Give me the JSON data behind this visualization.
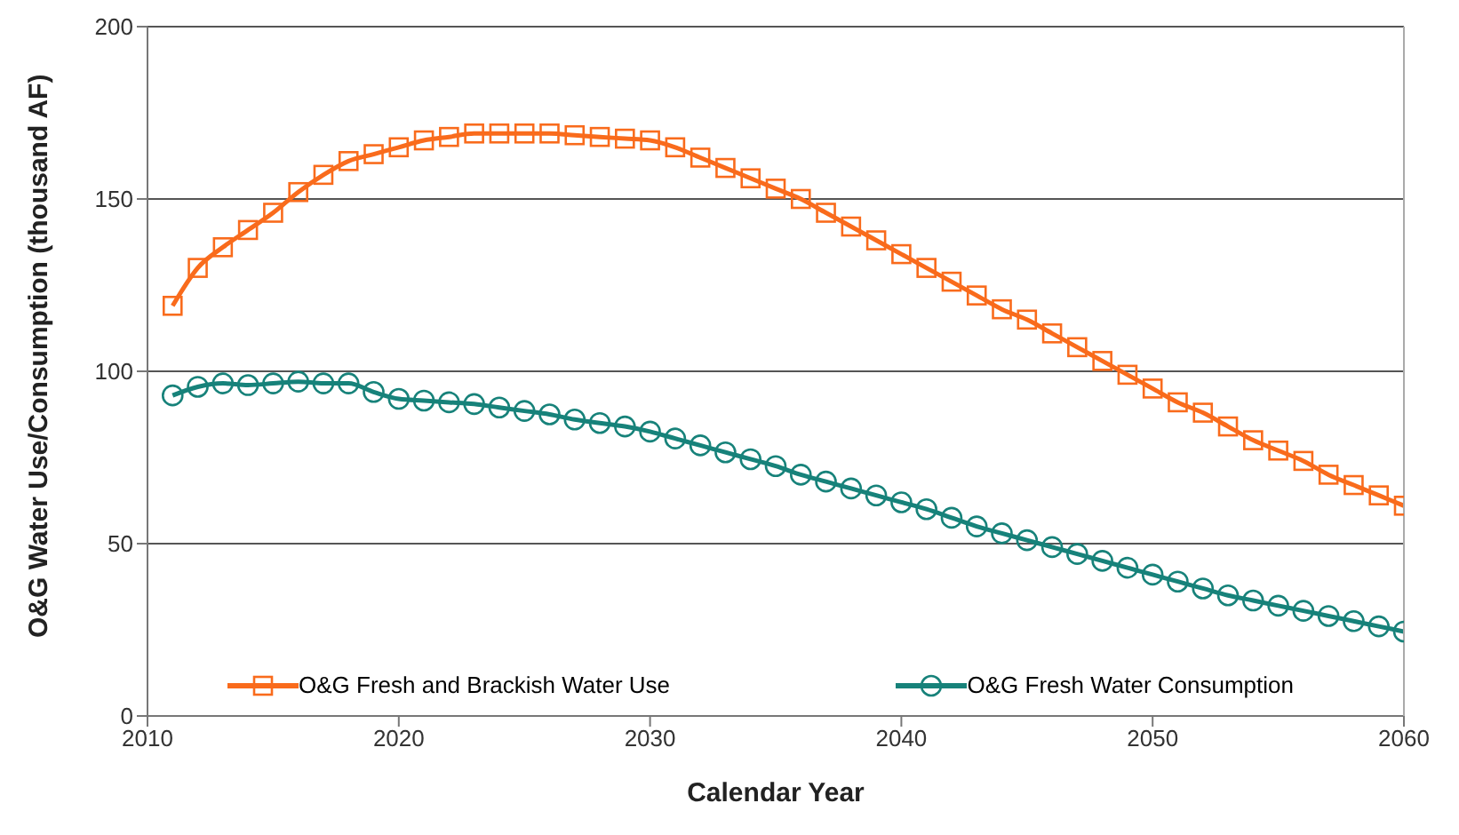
{
  "chart_data": {
    "type": "line",
    "xlabel": "Calendar Year",
    "ylabel": "O&G Water Use/Consumption (thousand AF)",
    "x": [
      2011,
      2012,
      2013,
      2014,
      2015,
      2016,
      2017,
      2018,
      2019,
      2020,
      2021,
      2022,
      2023,
      2024,
      2025,
      2026,
      2027,
      2028,
      2029,
      2030,
      2031,
      2032,
      2033,
      2034,
      2035,
      2036,
      2037,
      2038,
      2039,
      2040,
      2041,
      2042,
      2043,
      2044,
      2045,
      2046,
      2047,
      2048,
      2049,
      2050,
      2051,
      2052,
      2053,
      2054,
      2055,
      2056,
      2057,
      2058,
      2059,
      2060
    ],
    "series": [
      {
        "name": "O&G Fresh and Brackish Water Use",
        "color": "#f96b1c",
        "marker": "square",
        "values": [
          119,
          130,
          136,
          141,
          146,
          152,
          157,
          161,
          163,
          165,
          167,
          168,
          169,
          169,
          169,
          169,
          168.5,
          168,
          167.5,
          167,
          165,
          162,
          159,
          156,
          153,
          150,
          146,
          142,
          138,
          134,
          130,
          126,
          122,
          118,
          115,
          111,
          107,
          103,
          99,
          95,
          91,
          88,
          84,
          80,
          77,
          74,
          70,
          67,
          64,
          61
        ]
      },
      {
        "name": "O&G Fresh Water Consumption",
        "color": "#17827a",
        "marker": "circle",
        "values": [
          93,
          95.5,
          96.5,
          96,
          96.5,
          97,
          96.5,
          96.5,
          94,
          92,
          91.5,
          91,
          90.5,
          89.5,
          88.5,
          87.5,
          86,
          85,
          84,
          82.5,
          80.5,
          78.5,
          76.5,
          74.5,
          72.5,
          70,
          68,
          66,
          64,
          62,
          60,
          57.5,
          55,
          53,
          51,
          49,
          47,
          45,
          43,
          41,
          39,
          37,
          35,
          33.5,
          32,
          30.5,
          29,
          27.5,
          26,
          24.5
        ]
      }
    ],
    "xlim": [
      2010,
      2060
    ],
    "xticks": [
      2010,
      2020,
      2030,
      2040,
      2050,
      2060
    ],
    "ylim": [
      0,
      200
    ],
    "yticks": [
      0,
      50,
      100,
      150,
      200
    ],
    "grid": "y",
    "legend": "bottom",
    "line_style": "solid"
  }
}
